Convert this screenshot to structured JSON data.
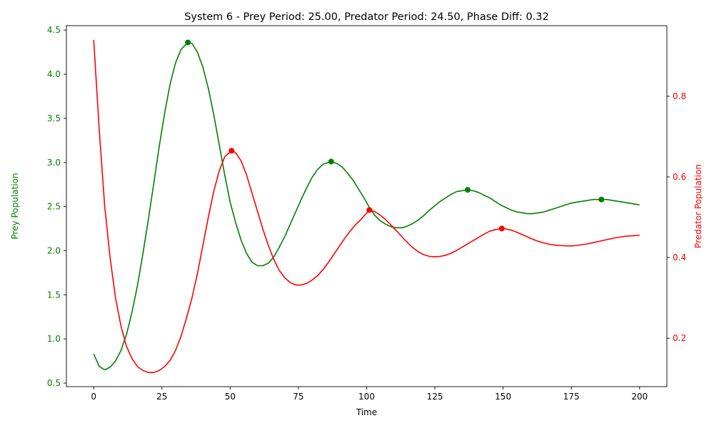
{
  "chart_data": {
    "type": "line",
    "title": "System 6 - Prey Period: 25.00, Predator Period: 24.50, Phase Diff: 0.32",
    "xlabel": "Time",
    "ylabel_left": "Prey Population",
    "ylabel_right": "Predator Population",
    "xlim": [
      -10,
      210
    ],
    "ylim_left": [
      0.46,
      4.55
    ],
    "ylim_right": [
      0.08,
      0.975
    ],
    "x_ticks": [
      0,
      25,
      50,
      75,
      100,
      125,
      150,
      175,
      200
    ],
    "y_left_ticks": [
      0.5,
      1.0,
      1.5,
      2.0,
      2.5,
      3.0,
      3.5,
      4.0,
      4.5
    ],
    "y_left_tick_labels": [
      "0.5",
      "1.0",
      "1.5",
      "2.0",
      "2.5",
      "3.0",
      "3.5",
      "4.0",
      "4.5"
    ],
    "y_right_ticks": [
      0.2,
      0.4,
      0.6,
      0.8
    ],
    "y_right_tick_labels": [
      "0.2",
      "0.4",
      "0.6",
      "0.8"
    ],
    "grid": false,
    "legend": "none",
    "colors": {
      "prey": "#008000",
      "predator": "#ff0000"
    },
    "series": [
      {
        "axis": "left",
        "color": "#008000",
        "points": [
          [
            0,
            0.83
          ],
          [
            2,
            0.69
          ],
          [
            4,
            0.65
          ],
          [
            6,
            0.68
          ],
          [
            8,
            0.75
          ],
          [
            10,
            0.87
          ],
          [
            12,
            1.05
          ],
          [
            14,
            1.3
          ],
          [
            16,
            1.6
          ],
          [
            18,
            1.96
          ],
          [
            20,
            2.35
          ],
          [
            22,
            2.76
          ],
          [
            24,
            3.18
          ],
          [
            26,
            3.56
          ],
          [
            28,
            3.89
          ],
          [
            30,
            4.13
          ],
          [
            32,
            4.28
          ],
          [
            34.5,
            4.36
          ],
          [
            36,
            4.35
          ],
          [
            38,
            4.25
          ],
          [
            40,
            4.08
          ],
          [
            42,
            3.84
          ],
          [
            44,
            3.54
          ],
          [
            46,
            3.2
          ],
          [
            48,
            2.86
          ],
          [
            50,
            2.55
          ],
          [
            52,
            2.32
          ],
          [
            54,
            2.12
          ],
          [
            56,
            1.97
          ],
          [
            58,
            1.87
          ],
          [
            60,
            1.83
          ],
          [
            62,
            1.83
          ],
          [
            64,
            1.86
          ],
          [
            66,
            1.93
          ],
          [
            68,
            2.04
          ],
          [
            70,
            2.16
          ],
          [
            72,
            2.3
          ],
          [
            74,
            2.44
          ],
          [
            76,
            2.58
          ],
          [
            78,
            2.71
          ],
          [
            80,
            2.83
          ],
          [
            82,
            2.92
          ],
          [
            84,
            2.98
          ],
          [
            87,
            3.01
          ],
          [
            89,
            2.99
          ],
          [
            91,
            2.95
          ],
          [
            93,
            2.88
          ],
          [
            95,
            2.8
          ],
          [
            97,
            2.7
          ],
          [
            99,
            2.6
          ],
          [
            101,
            2.49
          ],
          [
            103,
            2.4
          ],
          [
            105,
            2.34
          ],
          [
            107,
            2.3
          ],
          [
            109,
            2.27
          ],
          [
            111,
            2.26
          ],
          [
            113,
            2.26
          ],
          [
            115,
            2.28
          ],
          [
            117,
            2.31
          ],
          [
            119,
            2.35
          ],
          [
            121,
            2.4
          ],
          [
            123,
            2.46
          ],
          [
            125,
            2.51
          ],
          [
            127,
            2.56
          ],
          [
            129,
            2.6
          ],
          [
            131,
            2.64
          ],
          [
            133,
            2.67
          ],
          [
            135,
            2.68
          ],
          [
            137,
            2.69
          ],
          [
            139,
            2.68
          ],
          [
            141,
            2.66
          ],
          [
            143,
            2.63
          ],
          [
            145,
            2.6
          ],
          [
            147,
            2.56
          ],
          [
            149,
            2.52
          ],
          [
            151,
            2.49
          ],
          [
            153,
            2.46
          ],
          [
            155,
            2.44
          ],
          [
            157,
            2.43
          ],
          [
            159,
            2.42
          ],
          [
            161,
            2.42
          ],
          [
            163,
            2.43
          ],
          [
            165,
            2.44
          ],
          [
            167,
            2.46
          ],
          [
            169,
            2.48
          ],
          [
            171,
            2.5
          ],
          [
            173,
            2.52
          ],
          [
            175,
            2.54
          ],
          [
            177,
            2.55
          ],
          [
            179,
            2.56
          ],
          [
            181,
            2.57
          ],
          [
            183,
            2.58
          ],
          [
            186,
            2.58
          ],
          [
            188,
            2.58
          ],
          [
            190,
            2.57
          ],
          [
            192,
            2.56
          ],
          [
            194,
            2.55
          ],
          [
            196,
            2.54
          ],
          [
            198,
            2.53
          ],
          [
            200,
            2.52
          ]
        ]
      },
      {
        "axis": "right",
        "color": "#ff0000",
        "points": [
          [
            0,
            0.94
          ],
          [
            2,
            0.72
          ],
          [
            4,
            0.53
          ],
          [
            6,
            0.4
          ],
          [
            8,
            0.3
          ],
          [
            10,
            0.23
          ],
          [
            12,
            0.18
          ],
          [
            14,
            0.15
          ],
          [
            16,
            0.13
          ],
          [
            18,
            0.12
          ],
          [
            20,
            0.115
          ],
          [
            22,
            0.115
          ],
          [
            24,
            0.12
          ],
          [
            26,
            0.13
          ],
          [
            28,
            0.145
          ],
          [
            30,
            0.17
          ],
          [
            32,
            0.205
          ],
          [
            34,
            0.25
          ],
          [
            36,
            0.3
          ],
          [
            38,
            0.36
          ],
          [
            40,
            0.43
          ],
          [
            42,
            0.5
          ],
          [
            44,
            0.565
          ],
          [
            46,
            0.615
          ],
          [
            48,
            0.65
          ],
          [
            50.5,
            0.665
          ],
          [
            52,
            0.66
          ],
          [
            54,
            0.64
          ],
          [
            56,
            0.605
          ],
          [
            58,
            0.56
          ],
          [
            60,
            0.515
          ],
          [
            62,
            0.47
          ],
          [
            64,
            0.43
          ],
          [
            66,
            0.395
          ],
          [
            68,
            0.368
          ],
          [
            70,
            0.35
          ],
          [
            72,
            0.338
          ],
          [
            74,
            0.332
          ],
          [
            76,
            0.332
          ],
          [
            78,
            0.336
          ],
          [
            80,
            0.344
          ],
          [
            82,
            0.355
          ],
          [
            84,
            0.37
          ],
          [
            86,
            0.388
          ],
          [
            88,
            0.408
          ],
          [
            90,
            0.428
          ],
          [
            92,
            0.448
          ],
          [
            94,
            0.466
          ],
          [
            96,
            0.482
          ],
          [
            98,
            0.495
          ],
          [
            101,
            0.518
          ],
          [
            103,
            0.514
          ],
          [
            105,
            0.505
          ],
          [
            107,
            0.494
          ],
          [
            109,
            0.48
          ],
          [
            111,
            0.466
          ],
          [
            113,
            0.451
          ],
          [
            115,
            0.437
          ],
          [
            117,
            0.424
          ],
          [
            119,
            0.414
          ],
          [
            121,
            0.407
          ],
          [
            123,
            0.403
          ],
          [
            125,
            0.402
          ],
          [
            127,
            0.403
          ],
          [
            129,
            0.406
          ],
          [
            131,
            0.411
          ],
          [
            133,
            0.418
          ],
          [
            135,
            0.426
          ],
          [
            137,
            0.434
          ],
          [
            139,
            0.442
          ],
          [
            141,
            0.45
          ],
          [
            143,
            0.458
          ],
          [
            145,
            0.465
          ],
          [
            147,
            0.469
          ],
          [
            149.5,
            0.472
          ],
          [
            151,
            0.471
          ],
          [
            153,
            0.468
          ],
          [
            155,
            0.463
          ],
          [
            157,
            0.457
          ],
          [
            159,
            0.451
          ],
          [
            161,
            0.445
          ],
          [
            163,
            0.44
          ],
          [
            165,
            0.436
          ],
          [
            167,
            0.433
          ],
          [
            169,
            0.431
          ],
          [
            171,
            0.43
          ],
          [
            173,
            0.429
          ],
          [
            175,
            0.429
          ],
          [
            177,
            0.43
          ],
          [
            179,
            0.432
          ],
          [
            181,
            0.434
          ],
          [
            183,
            0.437
          ],
          [
            185,
            0.44
          ],
          [
            187,
            0.443
          ],
          [
            189,
            0.446
          ],
          [
            191,
            0.449
          ],
          [
            193,
            0.451
          ],
          [
            195,
            0.453
          ],
          [
            197,
            0.454
          ],
          [
            199,
            0.455
          ],
          [
            200,
            0.455
          ]
        ]
      }
    ],
    "markers": [
      {
        "axis": "left",
        "color": "#008000",
        "points": [
          [
            34.5,
            4.36
          ],
          [
            87,
            3.01
          ],
          [
            137,
            2.69
          ],
          [
            186,
            2.58
          ]
        ]
      },
      {
        "axis": "right",
        "color": "#ff0000",
        "points": [
          [
            50.5,
            0.665
          ],
          [
            101,
            0.518
          ],
          [
            149.5,
            0.472
          ]
        ]
      }
    ]
  }
}
